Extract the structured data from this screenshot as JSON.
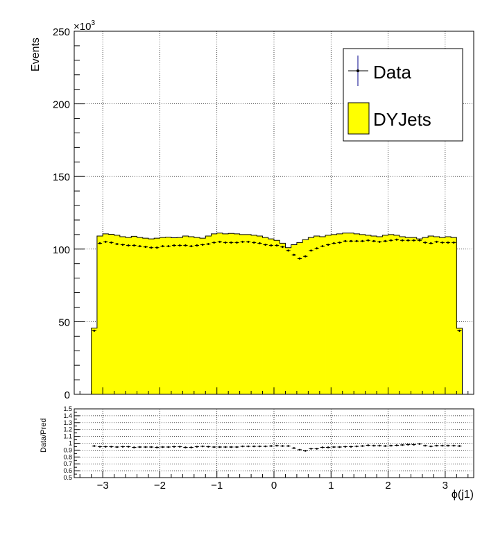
{
  "chart_data": [
    {
      "type": "histogram",
      "ylabel": "Events",
      "y_multiplier": "×10",
      "y_multiplier_exp": "3",
      "ylim": [
        0,
        250
      ],
      "yticks": [
        "0",
        "50",
        "100",
        "150",
        "200",
        "250"
      ],
      "xlim": [
        -3.5,
        3.5
      ],
      "grid": true,
      "legend_placement": "top-right",
      "legend": [
        {
          "label": "Data",
          "style": "marker-with-errorbar"
        },
        {
          "label": "DYJets",
          "style": "filled-box"
        }
      ],
      "bin_edges_start": -3.2,
      "bin_width": 0.1,
      "series": [
        {
          "name": "DYJets",
          "fill": "#ffff00",
          "values": [
            45.6,
            109.0,
            110.5,
            110.2,
            109.5,
            108.5,
            108.0,
            108.8,
            108.0,
            107.5,
            107.0,
            107.5,
            108.0,
            108.2,
            107.8,
            108.0,
            109.0,
            108.5,
            108.0,
            107.5,
            109.0,
            110.5,
            111.0,
            110.5,
            110.8,
            110.5,
            110.0,
            110.0,
            109.5,
            109.0,
            108.0,
            107.0,
            106.0,
            104.0,
            101.0,
            103.0,
            104.5,
            106.5,
            108.0,
            109.0,
            108.5,
            109.5,
            110.0,
            110.5,
            111.0,
            111.0,
            110.5,
            110.0,
            109.5,
            109.0,
            108.5,
            109.5,
            110.0,
            109.5,
            108.5,
            108.0,
            108.0,
            107.0,
            108.0,
            109.0,
            108.5,
            108.0,
            108.5,
            108.0,
            45.5
          ]
        },
        {
          "name": "Data",
          "style": "markers",
          "values": [
            43.8,
            104.0,
            105.0,
            104.5,
            103.5,
            103.0,
            102.5,
            102.5,
            102.0,
            101.5,
            101.0,
            101.0,
            102.0,
            102.0,
            102.5,
            102.5,
            102.5,
            102.0,
            102.5,
            103.0,
            103.5,
            104.5,
            105.0,
            104.5,
            104.5,
            104.5,
            105.0,
            105.0,
            104.5,
            104.0,
            103.0,
            102.5,
            102.5,
            101.5,
            99.0,
            96.0,
            93.5,
            95.0,
            99.0,
            100.5,
            102.0,
            103.0,
            104.0,
            104.5,
            105.5,
            105.5,
            105.5,
            105.5,
            106.0,
            105.5,
            105.0,
            105.5,
            106.0,
            106.5,
            106.0,
            106.0,
            106.0,
            106.0,
            104.5,
            104.0,
            105.0,
            104.5,
            104.5,
            104.5,
            43.8
          ]
        }
      ]
    },
    {
      "type": "scatter",
      "ylabel": "Data/Pred",
      "xlabel": "ϕ(j1)",
      "ylim": [
        0.5,
        1.5
      ],
      "yticks": [
        "0.5",
        "0.6",
        "0.7",
        "0.8",
        "0.9",
        "1",
        "1.1",
        "1.2",
        "1.3",
        "1.4",
        "1.5"
      ],
      "xlim": [
        -3.5,
        3.5
      ],
      "xticks": [
        "−3",
        "−2",
        "−1",
        "0",
        "1",
        "2",
        "3"
      ],
      "grid": true,
      "series": [
        {
          "name": "ratio",
          "values": [
            0.96,
            0.95,
            0.95,
            0.95,
            0.945,
            0.95,
            0.95,
            0.94,
            0.945,
            0.945,
            0.945,
            0.94,
            0.945,
            0.945,
            0.95,
            0.95,
            0.94,
            0.94,
            0.95,
            0.955,
            0.95,
            0.945,
            0.945,
            0.945,
            0.945,
            0.945,
            0.955,
            0.955,
            0.955,
            0.955,
            0.955,
            0.96,
            0.965,
            0.96,
            0.96,
            0.93,
            0.905,
            0.89,
            0.92,
            0.92,
            0.94,
            0.94,
            0.945,
            0.945,
            0.95,
            0.95,
            0.955,
            0.96,
            0.97,
            0.965,
            0.965,
            0.96,
            0.965,
            0.97,
            0.975,
            0.98,
            0.98,
            0.99,
            0.965,
            0.955,
            0.965,
            0.965,
            0.965,
            0.965,
            0.96
          ]
        }
      ]
    }
  ]
}
